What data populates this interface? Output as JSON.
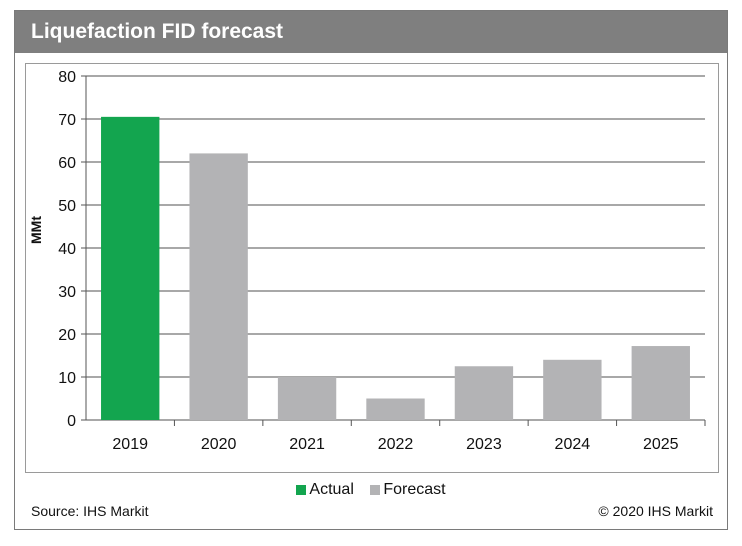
{
  "title": "Liquefaction FID forecast",
  "source": "Source: IHS Markit",
  "copyright": "© 2020 IHS Markit",
  "colors": {
    "actual": "#13a54f",
    "forecast": "#b3b3b5",
    "grid": "#8c8c8c",
    "title_bg": "#7f7f7f"
  },
  "chart_data": {
    "type": "bar",
    "categories": [
      "2019",
      "2020",
      "2021",
      "2022",
      "2023",
      "2024",
      "2025"
    ],
    "values": [
      70.5,
      62,
      10,
      5,
      12.5,
      14,
      17.2
    ],
    "kinds": [
      "Actual",
      "Forecast",
      "Forecast",
      "Forecast",
      "Forecast",
      "Forecast",
      "Forecast"
    ],
    "ylabel": "MMt",
    "ylim": [
      0,
      80
    ],
    "yticks": [
      0,
      10,
      20,
      30,
      40,
      50,
      60,
      70,
      80
    ],
    "grid": true,
    "legend": {
      "position": "bottom",
      "entries": [
        "Actual",
        "Forecast"
      ]
    }
  }
}
